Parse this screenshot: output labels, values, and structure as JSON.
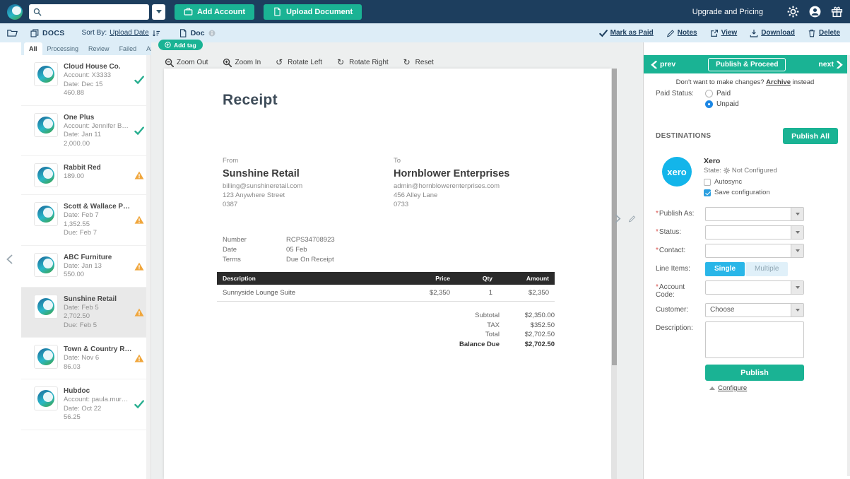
{
  "topbar": {
    "search": {
      "value": "",
      "placeholder": ""
    },
    "add_account_label": "Add Account",
    "upload_document_label": "Upload Document",
    "upgrade_label": "Upgrade and Pricing"
  },
  "subbar": {
    "docs_label": "DOCS",
    "sort_by_label": "Sort By:",
    "sort_value": "Upload Date",
    "doc_tab_label": "Doc",
    "add_tag_label": "Add tag",
    "actions": [
      {
        "label": "Mark as Paid",
        "icon": "check"
      },
      {
        "label": "Notes",
        "icon": "pencil"
      },
      {
        "label": "View",
        "icon": "external"
      },
      {
        "label": "Download",
        "icon": "download"
      },
      {
        "label": "Delete",
        "icon": "trash"
      }
    ]
  },
  "doc_tabs": {
    "items": [
      "All",
      "Processing",
      "Review",
      "Failed",
      "Archived"
    ],
    "active": "All"
  },
  "documents": [
    {
      "name": "Cloud House Co.",
      "lines": [
        "Account: X3333",
        "Date: Dec 15",
        "460.88"
      ],
      "status": "check",
      "selected": false
    },
    {
      "name": "One Plus",
      "lines": [
        "Account: Jennifer Bailey",
        "Date: Jan 11",
        "2,000.00"
      ],
      "status": "check",
      "selected": false
    },
    {
      "name": "Rabbit Red",
      "lines": [
        "189.00"
      ],
      "status": "warning",
      "selected": false
    },
    {
      "name": "Scott & Wallace Project",
      "lines": [
        "Date: Feb 7",
        "1,352.55",
        "Due: Feb 7"
      ],
      "status": "warning",
      "selected": false
    },
    {
      "name": "ABC Furniture",
      "lines": [
        "Date: Jan 13",
        "550.00"
      ],
      "status": "warning",
      "selected": false
    },
    {
      "name": "Sunshine Retail",
      "lines": [
        "Date: Feb 5",
        "2,702.50",
        "Due: Feb 5"
      ],
      "status": "warning",
      "selected": true
    },
    {
      "name": "Town & Country Real Estate",
      "lines": [
        "Date: Nov 6",
        "86.03"
      ],
      "status": "warning",
      "selected": false
    },
    {
      "name": "Hubdoc",
      "lines": [
        "Account: paula.murmann@hubd",
        "Date: Oct 22",
        "56.25"
      ],
      "status": "check",
      "selected": false
    }
  ],
  "viewer": {
    "toolbar": [
      {
        "label": "Zoom Out",
        "icon": "zoom-out"
      },
      {
        "label": "Zoom In",
        "icon": "zoom-in"
      },
      {
        "label": "Rotate Left",
        "icon": "rotate-left"
      },
      {
        "label": "Rotate Right",
        "icon": "rotate-right"
      },
      {
        "label": "Reset",
        "icon": "reset"
      }
    ]
  },
  "receipt": {
    "title": "Receipt",
    "from_label": "From",
    "from_name": "Sunshine Retail",
    "from_lines": [
      "billing@sunshineretail.com",
      "123 Anywhere Street",
      "0387"
    ],
    "to_label": "To",
    "to_name": "Hornblower Enterprises",
    "to_lines": [
      "admin@hornblowerenterprises.com",
      "456 Alley Lane",
      "0733"
    ],
    "meta": [
      [
        "Number",
        "RCPS34708923"
      ],
      [
        "Date",
        "05 Feb"
      ],
      [
        "Terms",
        "Due On Receipt"
      ]
    ],
    "table_headers": [
      "Description",
      "Price",
      "Qty",
      "Amount"
    ],
    "table_rows": [
      [
        "Sunnyside Lounge Suite",
        "$2,350",
        "1",
        "$2,350"
      ]
    ],
    "totals": [
      {
        "label": "Subtotal",
        "value": "$2,350.00",
        "bold": false
      },
      {
        "label": "TAX",
        "value": "$352.50",
        "bold": false
      },
      {
        "label": "Total",
        "value": "$2,702.50",
        "bold": false
      },
      {
        "label": "Balance Due",
        "value": "$2,702.50",
        "bold": true
      }
    ]
  },
  "panel": {
    "prev_label": "prev",
    "next_label": "next",
    "publish_proceed_label": "Publish & Proceed",
    "archive_prefix": "Don't want to make changes?",
    "archive_link": "Archive",
    "archive_suffix": "instead",
    "paid_status_label": "Paid Status:",
    "paid_options": [
      {
        "label": "Paid",
        "selected": false
      },
      {
        "label": "Unpaid",
        "selected": true
      }
    ],
    "destinations_label": "DESTINATIONS",
    "publish_all_label": "Publish All",
    "xero": {
      "logo_text": "xero",
      "name": "Xero",
      "state_label": "State:",
      "state_value": "Not Configured",
      "autosync_label": "Autosync",
      "autosync_checked": false,
      "save_config_label": "Save configuration",
      "save_config_checked": true
    },
    "form_rows": [
      {
        "label": "Publish As:",
        "required": true,
        "type": "select",
        "value": ""
      },
      {
        "label": "Status:",
        "required": true,
        "type": "select",
        "value": ""
      },
      {
        "label": "Contact:",
        "required": true,
        "type": "select",
        "value": ""
      },
      {
        "label": "Line Items:",
        "required": false,
        "type": "toggle",
        "options": [
          "Single",
          "Multiple"
        ],
        "selected": "Single"
      },
      {
        "label": "Account Code:",
        "required": true,
        "type": "select",
        "value": ""
      },
      {
        "label": "Customer:",
        "required": false,
        "type": "select",
        "value": "Choose"
      },
      {
        "label": "Description:",
        "required": false,
        "type": "textarea",
        "value": ""
      }
    ],
    "publish_label": "Publish",
    "configure_label": "Configure"
  },
  "colors": {
    "teal": "#1ab394",
    "navy": "#1d3e5e",
    "subbar_blue": "#ddedf7",
    "xero_blue": "#13b5ea",
    "warning_orange": "#f0a63c",
    "check_green": "#27ae8f",
    "radio_blue": "#1d87e4",
    "toggle_blue": "#29b6e8"
  }
}
